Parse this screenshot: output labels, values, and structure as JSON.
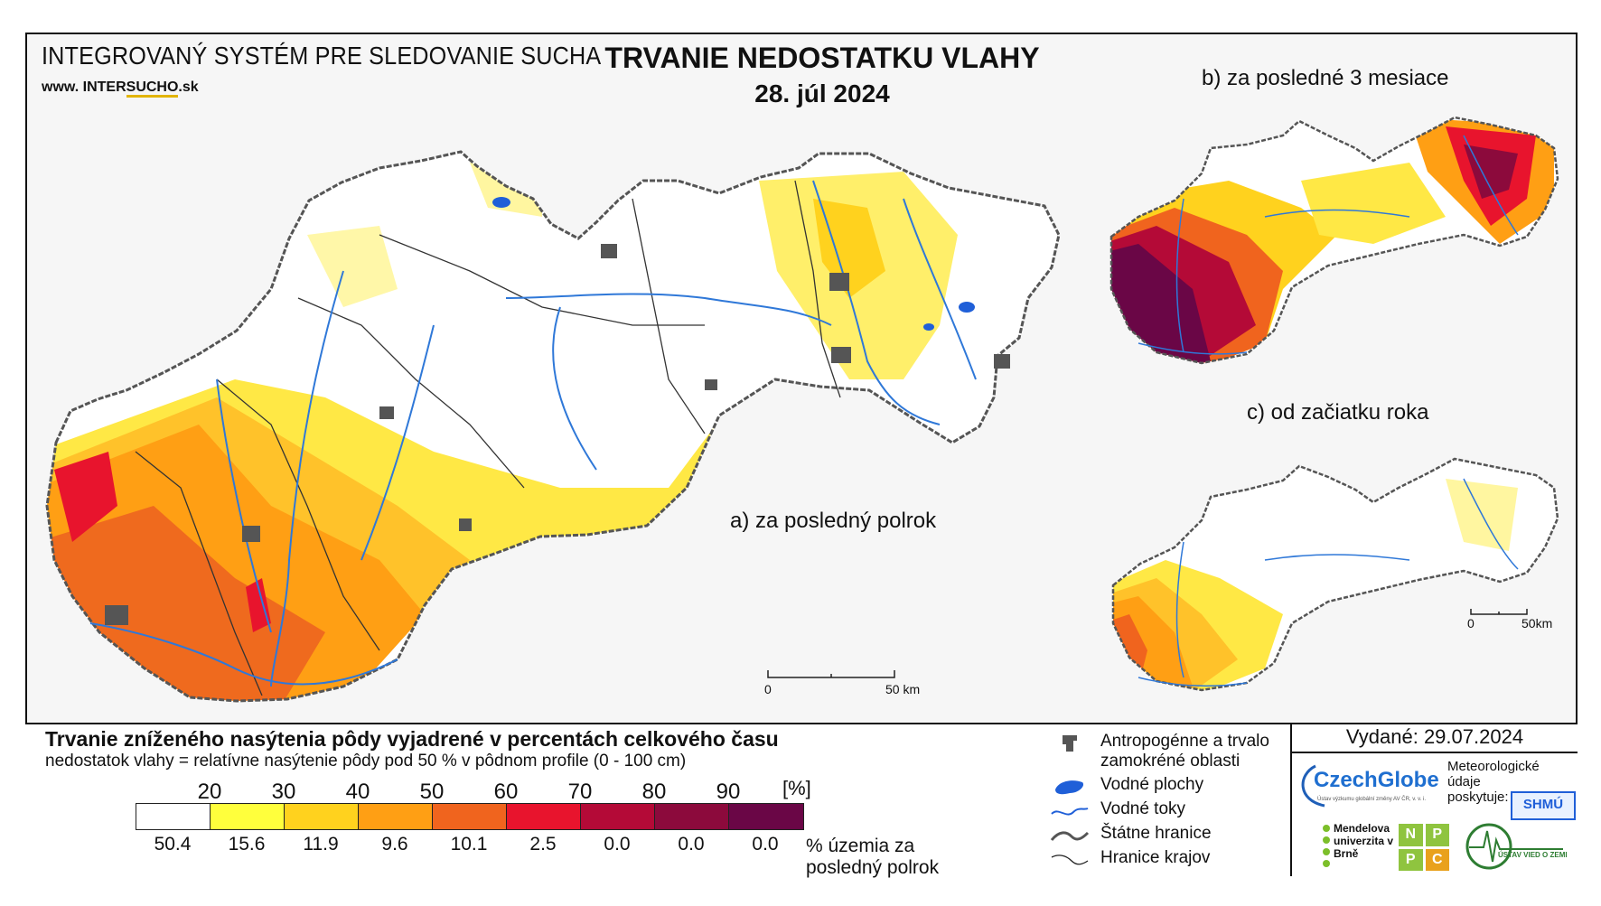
{
  "header": {
    "system_title": "INTEGROVANÝ SYSTÉM PRE SLEDOVANIE SUCHA",
    "www_prefix": "www. ",
    "www_inter": "INTER",
    "www_sucho": "SUCHO",
    "www_suffix": ".sk",
    "main_title": "TRVANIE NEDOSTATKU VLAHY",
    "date": "28. júl 2024"
  },
  "maps": {
    "a_label": "a) za posledný polrok",
    "b_label": "b) za posledné 3 mesiace",
    "c_label": "c) od začiatku roka",
    "scale_main": {
      "start": "0",
      "end": "50 km"
    },
    "scale_small": {
      "start": "0",
      "end": "50km"
    }
  },
  "legend": {
    "title": "Trvanie zníženého nasýtenia pôdy vyjadrené v percentách celkového času",
    "subtitle": "nedostatok vlahy = relatívne nasýtenie pôdy pod 50 % v pôdnom profile (0 - 100 cm)",
    "thresholds": [
      "20",
      "30",
      "40",
      "50",
      "60",
      "70",
      "80",
      "90"
    ],
    "unit": "[%]",
    "colors": [
      "#ffffff",
      "#ffff3c",
      "#ffd21e",
      "#ff9f14",
      "#f0641e",
      "#e8142d",
      "#b40a37",
      "#8c0a3c",
      "#6a0646"
    ],
    "shares": [
      "50.4",
      "15.6",
      "11.9",
      "9.6",
      "10.1",
      "2.5",
      "0.0",
      "0.0",
      "0.0"
    ],
    "shares_title": "% územia za posledný polrok"
  },
  "symbols": {
    "anthropogenic": "Antropogénne a trvalo zamokréné oblasti",
    "water_bodies": "Vodné plochy",
    "rivers": "Vodné toky",
    "state_border": "Štátne hranice",
    "region_border": "Hranice krajov"
  },
  "issue": {
    "issued": "Vydané: 29.07.2024",
    "meteo": "Meteorologické údaje poskytuje:",
    "czechglobe": "CzechGlobe",
    "czechglobe_sub": "Ústav výzkumu globální změny AV ČR, v. v. i.",
    "mendelu": "Mendelova univerzita v Brně",
    "nppc": [
      "N",
      "P",
      "P",
      "C"
    ],
    "shmu": "SHMÚ",
    "uvz": "ÚSTAV VIED O ZEMI"
  }
}
